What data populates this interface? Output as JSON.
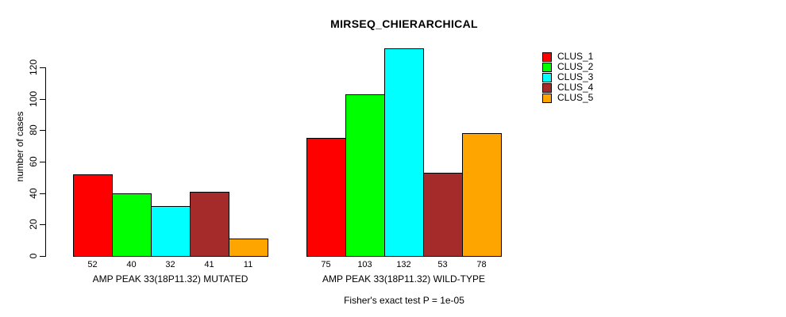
{
  "title": "MIRSEQ_CHIERARCHICAL",
  "annotation": "Fisher's exact test P = 1e-05",
  "chart_data": {
    "type": "bar",
    "title": "MIRSEQ_CHIERARCHICAL",
    "xlabel": "",
    "ylabel": "number of cases",
    "ylim": [
      0,
      133
    ],
    "yticks": [
      0,
      20,
      40,
      60,
      80,
      100,
      120
    ],
    "grid": false,
    "legend_position": "top-right",
    "series": [
      "CLUS_1",
      "CLUS_2",
      "CLUS_3",
      "CLUS_4",
      "CLUS_5"
    ],
    "colors": [
      "#FF0000",
      "#00FF00",
      "#00FFFF",
      "#A52A2A",
      "#FFA500"
    ],
    "bar_border_color": "#000000",
    "groups": [
      {
        "label": "AMP PEAK 33(18P11.32) MUTATED",
        "values": [
          52,
          40,
          32,
          41,
          11
        ]
      },
      {
        "label": "AMP PEAK 33(18P11.32) WILD-TYPE",
        "values": [
          75,
          103,
          132,
          53,
          78
        ]
      }
    ],
    "footnote": "Fisher's exact test P = 1e-05"
  }
}
